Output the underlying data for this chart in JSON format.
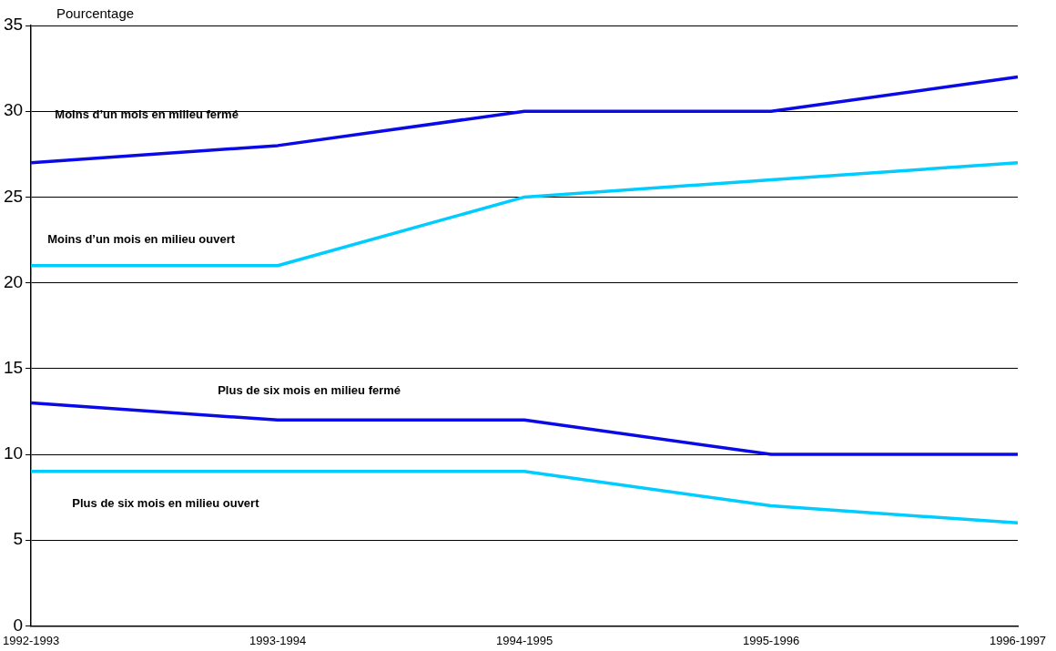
{
  "chart_data": {
    "type": "line",
    "ylabel": "Pourcentage",
    "categories": [
      "1992-1993",
      "1993-1994",
      "1994-1995",
      "1995-1996",
      "1996-1997"
    ],
    "series": [
      {
        "name": "Moins d’un mois en milieu fermé",
        "color": "#0a0ae6",
        "values": [
          27,
          28,
          30,
          30,
          32
        ]
      },
      {
        "name": "Moins d’un mois en milieu ouvert",
        "color": "#00ccff",
        "values": [
          21,
          21,
          25,
          26,
          27
        ]
      },
      {
        "name": "Plus de six mois en milieu fermé",
        "color": "#0a0ae6",
        "values": [
          13,
          12,
          12,
          10,
          10
        ]
      },
      {
        "name": "Plus de six mois en milieu ouvert",
        "color": "#00ccff",
        "values": [
          9,
          9,
          9,
          7,
          6
        ]
      }
    ],
    "ylim": [
      0,
      35
    ],
    "yticks": [
      0,
      5,
      10,
      15,
      20,
      25,
      30,
      35
    ],
    "grid": "y",
    "legend": false,
    "marker": "none",
    "line_style": "solid"
  }
}
